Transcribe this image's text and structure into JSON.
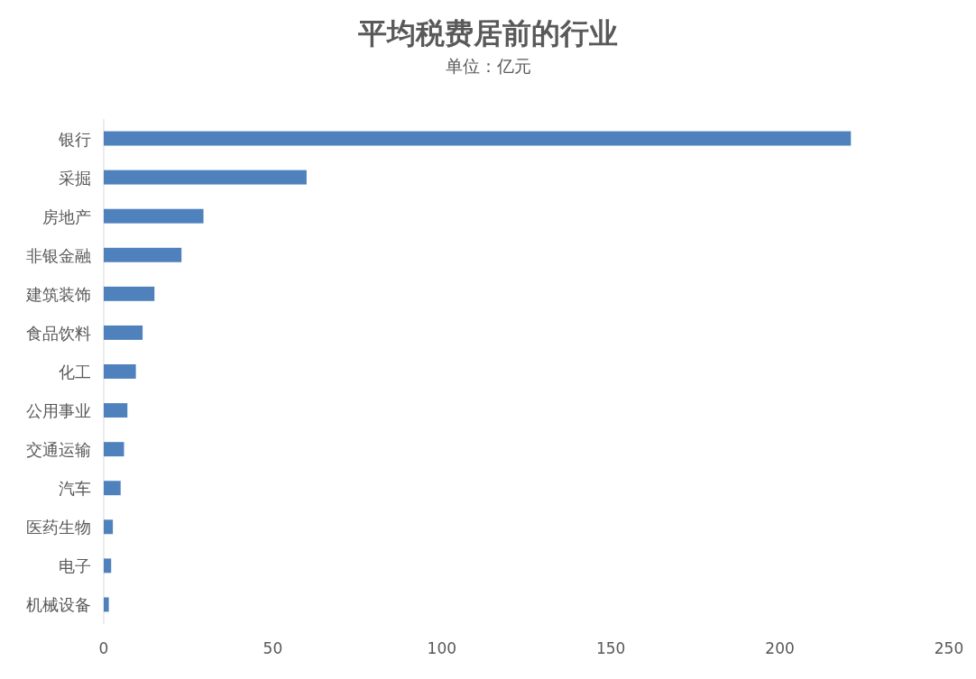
{
  "chart_data": {
    "type": "bar",
    "orientation": "horizontal",
    "title": "平均税费居前的行业",
    "subtitle": "单位：亿元",
    "categories": [
      "银行",
      "采掘",
      "房地产",
      "非银金融",
      "建筑装饰",
      "食品饮料",
      "化工",
      "公用事业",
      "交通运输",
      "汽车",
      "医药生物",
      "电子",
      "机械设备"
    ],
    "values": [
      221,
      60,
      29.5,
      23,
      15,
      11.5,
      9.5,
      7,
      6,
      5,
      2.7,
      2.2,
      1.5
    ],
    "color": "#4f81bd",
    "xlim": [
      0,
      250
    ],
    "xticks": [
      0,
      50,
      100,
      150,
      200,
      250
    ],
    "grid": false
  }
}
